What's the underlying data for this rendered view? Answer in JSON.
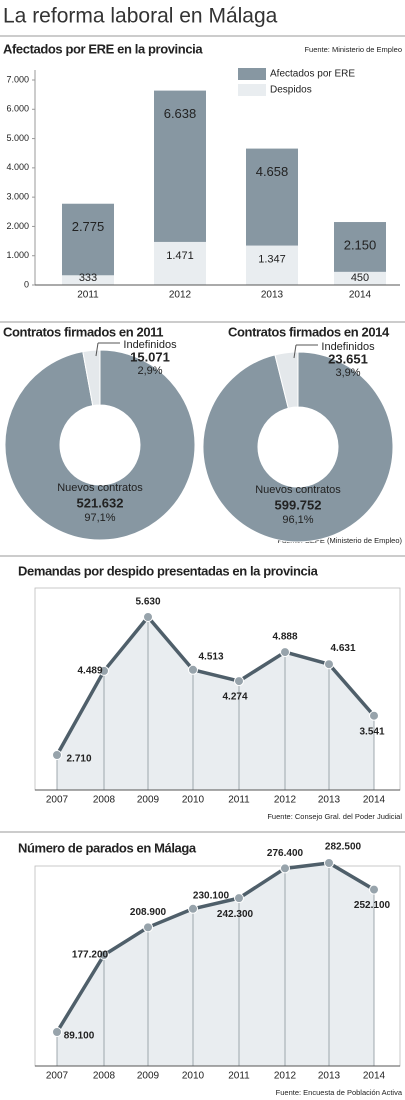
{
  "title": "La reforma laboral en Málaga",
  "chart_data": [
    {
      "type": "bar",
      "title": "Afectados por ERE en la provincia",
      "source": "Fuente: Ministerio de Empleo",
      "categories": [
        "2011",
        "2012",
        "2013",
        "2014"
      ],
      "series": [
        {
          "name": "Afectados por ERE",
          "color": "#8797a2",
          "values": [
            2775,
            6638,
            4658,
            2150
          ],
          "value_labels": [
            "2.775",
            "6.638",
            "4.658",
            "2.150"
          ]
        },
        {
          "name": "Despidos",
          "color": "#e9edf0",
          "values": [
            333,
            1471,
            1347,
            450
          ],
          "value_labels": [
            "333",
            "1.471",
            "1.347",
            "450"
          ]
        }
      ],
      "ylim": [
        0,
        7000
      ],
      "yticks": [
        0,
        {
          "value": 1000,
          "label": "1.000"
        },
        {
          "value": 2000,
          "label": "2.000"
        },
        {
          "value": 3000,
          "label": "3.000"
        },
        {
          "value": 4000,
          "label": "4.000"
        },
        {
          "value": 5000,
          "label": "5.000"
        },
        {
          "value": 6000,
          "label": "6.000"
        },
        {
          "value": 7000,
          "label": "7.000"
        }
      ],
      "legend": "top-right"
    },
    {
      "type": "pie",
      "title": "Contratos firmados en 2011",
      "categories": [
        "Indefinidos",
        "Nuevos contratos"
      ],
      "values": [
        15071,
        521632
      ],
      "value_labels": [
        "15.071",
        "521.632"
      ],
      "percents": [
        2.9,
        97.1
      ],
      "percent_labels": [
        "2,9%",
        "97,1%"
      ],
      "colors": [
        "#e4e8eb",
        "#8797a2"
      ]
    },
    {
      "type": "pie",
      "title": "Contratos firmados en 2014",
      "source": "Fuente: SEPE (Ministerio de Empleo)",
      "categories": [
        "Indefinidos",
        "Nuevos contratos"
      ],
      "values": [
        23651,
        599752
      ],
      "value_labels": [
        "23.651",
        "599.752"
      ],
      "percents": [
        3.9,
        96.1
      ],
      "percent_labels": [
        "3,9%",
        "96,1%"
      ],
      "colors": [
        "#e4e8eb",
        "#8797a2"
      ]
    },
    {
      "type": "line",
      "title": "Demandas por despido presentadas en la provincia",
      "source": "Fuente: Consejo Gral. del Poder Judicial",
      "categories": [
        "2007",
        "2008",
        "2009",
        "2010",
        "2011",
        "2012",
        "2013",
        "2014"
      ],
      "values": [
        2710,
        4489,
        5630,
        4513,
        4274,
        4888,
        4631,
        3541
      ],
      "value_labels": [
        "2.710",
        "4.489",
        "5.630",
        "4.513",
        "4.274",
        "4.888",
        "4.631",
        "3.541"
      ],
      "color": "#4f5f6a"
    },
    {
      "type": "line",
      "title": "Número de parados en Málaga",
      "source": "Fuente: Encuesta de Población Activa",
      "categories": [
        "2007",
        "2008",
        "2009",
        "2010",
        "2011",
        "2012",
        "2013",
        "2014"
      ],
      "values": [
        89100,
        177200,
        208900,
        230100,
        242300,
        276400,
        282500,
        252100
      ],
      "value_labels": [
        "89.100",
        "177.200",
        "208.900",
        "230.100",
        "242.300",
        "276.400",
        "282.500",
        "252.100"
      ],
      "color": "#4f5f6a"
    }
  ]
}
